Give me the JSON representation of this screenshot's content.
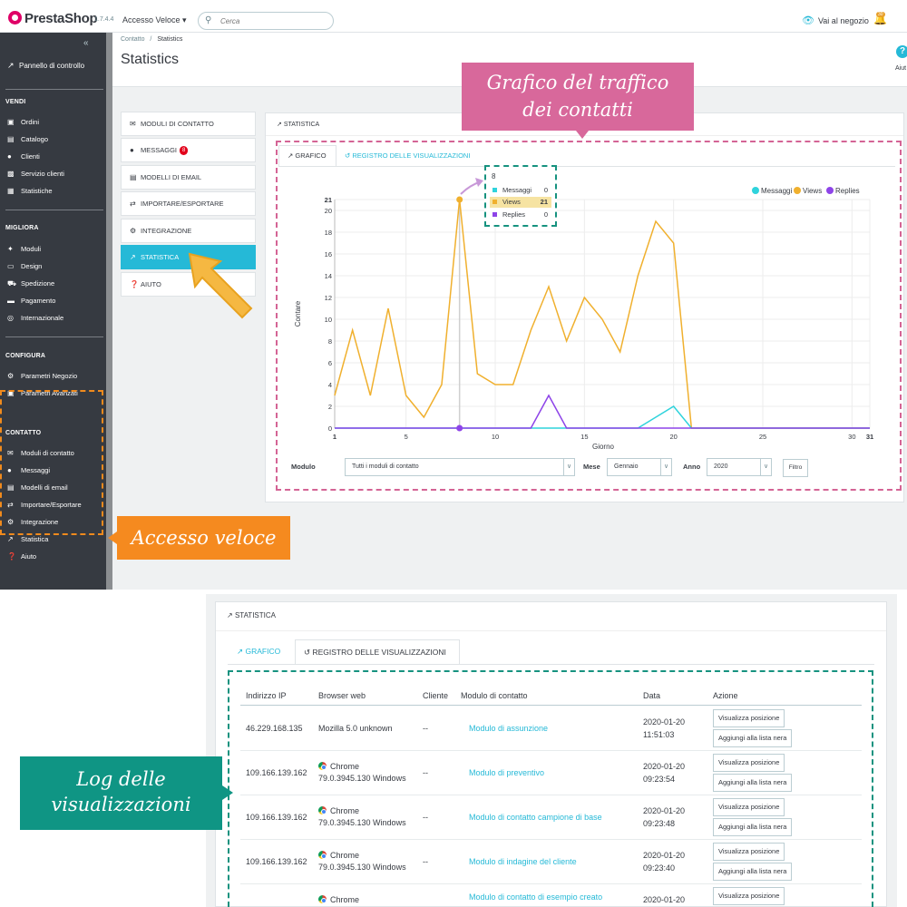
{
  "topbar": {
    "logo": "PrestaShop",
    "version": "1.7.4.4",
    "quick_access": "Accesso Veloce ▾",
    "search_placeholder": "Cerca",
    "store_link": "Vai al negozio",
    "notification_count": "30"
  },
  "sidebar": {
    "dashboard": "Pannello di controllo",
    "sections": [
      {
        "title": "VENDI",
        "items": [
          "Ordini",
          "Catalogo",
          "Clienti",
          "Servizio clienti",
          "Statistiche"
        ]
      },
      {
        "title": "MIGLIORA",
        "items": [
          "Moduli",
          "Design",
          "Spedizione",
          "Pagamento",
          "Internazionale"
        ]
      },
      {
        "title": "CONFIGURA",
        "items": [
          "Parametri Negozio",
          "Parametri Avanzati"
        ]
      },
      {
        "title": "CONTATTO",
        "items": [
          "Moduli di contatto",
          "Messaggi",
          "Modelli di email",
          "Importare/Esportare",
          "Integrazione",
          "Statistica",
          "Aiuto"
        ]
      }
    ]
  },
  "header": {
    "breadcrumb_parent": "Contatto",
    "breadcrumb_sep": "/",
    "breadcrumb_current": "Statistics",
    "title": "Statistics",
    "help_label": "Aiut"
  },
  "menu": {
    "items": [
      "MODULI DI CONTATTO",
      "MESSAGGI",
      "MODELLI DI EMAIL",
      "IMPORTARE/ESPORTARE",
      "INTEGRAZIONE",
      "STATISTICA",
      "AIUTO"
    ],
    "messages_badge": "8"
  },
  "stats": {
    "panel_title": "STATISTICA",
    "tab_chart": "GRAFICO",
    "tab_log": "REGISTRO DELLE VISUALIZZAZIONI"
  },
  "tooltip": {
    "title": "8",
    "rows": [
      {
        "label": "Messaggi",
        "value": "0"
      },
      {
        "label": "Views",
        "value": "21"
      },
      {
        "label": "Replies",
        "value": "0"
      }
    ]
  },
  "chart_data": {
    "type": "line",
    "title": "",
    "xlabel": "Giorno",
    "ylabel": "Contare",
    "ylim": [
      0,
      21
    ],
    "y_ticks": [
      0,
      2,
      4,
      6,
      8,
      10,
      12,
      14,
      16,
      18,
      20,
      21
    ],
    "x_ticks": [
      1,
      5,
      10,
      15,
      20,
      25,
      30,
      31
    ],
    "x": [
      1,
      2,
      3,
      4,
      5,
      6,
      7,
      8,
      9,
      10,
      11,
      12,
      13,
      14,
      15,
      16,
      17,
      18,
      19,
      20,
      21,
      22,
      23,
      24,
      25,
      26,
      27,
      28,
      29,
      30,
      31
    ],
    "series": [
      {
        "name": "Messaggi",
        "color": "#2fd3dc",
        "values": [
          0,
          0,
          0,
          0,
          0,
          0,
          0,
          0,
          0,
          0,
          0,
          0,
          0,
          0,
          0,
          0,
          0,
          0,
          1,
          2,
          0,
          0,
          0,
          0,
          0,
          0,
          0,
          0,
          0,
          0,
          0
        ]
      },
      {
        "name": "Views",
        "color": "#f0b02e",
        "values": [
          3,
          9,
          3,
          11,
          3,
          1,
          4,
          21,
          5,
          4,
          4,
          9,
          13,
          8,
          12,
          10,
          7,
          14,
          19,
          17,
          0,
          0,
          0,
          0,
          0,
          0,
          0,
          0,
          0,
          0,
          0
        ]
      },
      {
        "name": "Replies",
        "color": "#8e44e8",
        "values": [
          0,
          0,
          0,
          0,
          0,
          0,
          0,
          0,
          0,
          0,
          0,
          0,
          3,
          0,
          0,
          0,
          0,
          0,
          0,
          0,
          0,
          0,
          0,
          0,
          0,
          0,
          0,
          0,
          0,
          0,
          0
        ]
      }
    ]
  },
  "filters": {
    "module_label": "Modulo",
    "module_value": "Tutti i moduli di contatto",
    "month_label": "Mese",
    "month_value": "Gennaio",
    "year_label": "Anno",
    "year_value": "2020",
    "button": "Filtro"
  },
  "callouts": {
    "traffic_line1": "Grafico del traffico",
    "traffic_line2": "dei contatti",
    "access": "Accesso veloce",
    "log_line1": "Log delle",
    "log_line2": "visualizzazioni"
  },
  "log": {
    "panel_title": "STATISTICA",
    "tab_chart": "GRAFICO",
    "tab_log": "REGISTRO DELLE VISUALIZZAZIONI",
    "columns": [
      "Indirizzo IP",
      "Browser web",
      "Cliente",
      "Modulo di contatto",
      "Data",
      "Azione"
    ],
    "view_position": "Visualizza posizione",
    "blacklist": "Aggiungi alla lista nera",
    "rows": [
      {
        "ip": "46.229.168.135",
        "browser": "Mozilla 5.0 unknown",
        "browser2": "",
        "client": "--",
        "form": "Modulo di assunzione",
        "date": "2020-01-20",
        "time": "11:51:03"
      },
      {
        "ip": "109.166.139.162",
        "browser": "Chrome",
        "browser2": "79.0.3945.130 Windows",
        "client": "--",
        "form": "Modulo di preventivo",
        "date": "2020-01-20",
        "time": "09:23:54"
      },
      {
        "ip": "109.166.139.162",
        "browser": "Chrome",
        "browser2": "79.0.3945.130 Windows",
        "client": "--",
        "form": "Modulo di contatto campione di base",
        "date": "2020-01-20",
        "time": "09:23:48"
      },
      {
        "ip": "109.166.139.162",
        "browser": "Chrome",
        "browser2": "79.0.3945.130 Windows",
        "client": "--",
        "form": "Modulo di indagine del cliente",
        "date": "2020-01-20",
        "time": "09:23:40"
      },
      {
        "ip": "",
        "browser": "Chrome",
        "browser2": "",
        "client": "",
        "form": "Modulo di contatto di esempio creato",
        "date": "2020-01-20",
        "time": ""
      }
    ]
  }
}
